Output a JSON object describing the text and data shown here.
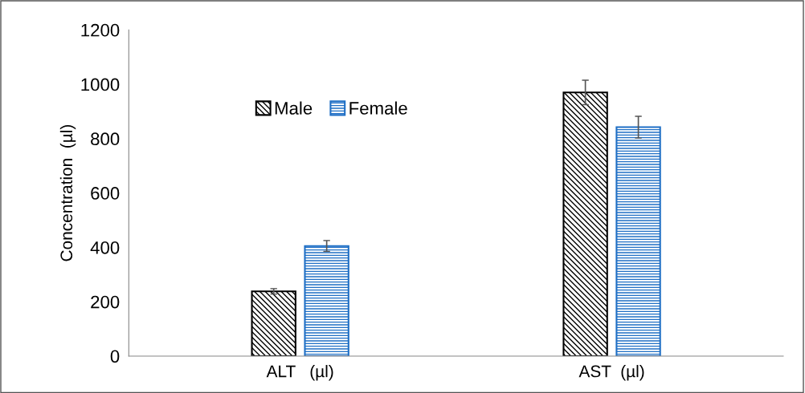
{
  "chart_data": {
    "type": "bar",
    "ylabel": "Concentration  (µl)",
    "categories": [
      "ALT   (µl)",
      "AST  (µl)"
    ],
    "series": [
      {
        "name": "Male",
        "color": "#000000",
        "values": [
          238,
          970
        ],
        "errors": [
          10,
          45
        ]
      },
      {
        "name": "Female",
        "color": "#1f6fc5",
        "values": [
          405,
          842
        ],
        "errors": [
          20,
          40
        ]
      }
    ],
    "ylim": [
      0,
      1200
    ],
    "yticks": [
      0,
      200,
      400,
      600,
      800,
      1000,
      1200
    ],
    "grid": false,
    "legend": "top left"
  }
}
